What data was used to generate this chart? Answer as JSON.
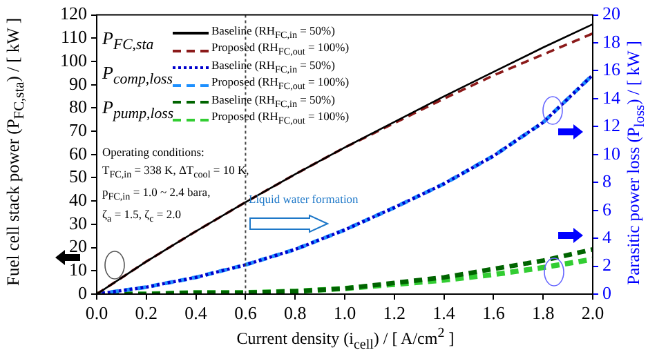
{
  "chart_data": {
    "type": "line",
    "xlabel": "Current density (i$_{cell}$) / [ A/cm$^{2}$ ]",
    "ylabel": "Fuel cell stack power (P$_{FC,sta}$) / [ kW ]",
    "y2label": "Parasitic power loss (P$_{loss}$) / [ kW ]",
    "x": [
      0,
      0.2,
      0.4,
      0.6,
      0.8,
      1.0,
      1.2,
      1.4,
      1.6,
      1.8,
      2.0
    ],
    "series": [
      {
        "name": "Baseline (RH$_{FC,in}$ = 50%)",
        "color": "#000000",
        "line_style": "solid",
        "values": [
          0,
          14,
          27,
          39.5,
          51.5,
          63,
          74,
          85,
          95.5,
          106,
          116
        ]
      },
      {
        "name": "Proposed (RH$_{FC,out}$ = 100%)",
        "color": "#8b1a1a",
        "line_style": "dashed",
        "values": [
          0,
          14,
          27,
          39.5,
          51.5,
          63,
          73.5,
          84,
          94,
          103,
          112
        ]
      },
      {
        "name": "Baseline (RH$_{FC,in}$ = 50%)",
        "color": "#0000cc",
        "line_style": "dotted",
        "axis": "y2",
        "values": [
          0,
          0.5,
          1.2,
          2.1,
          3.2,
          4.6,
          6.2,
          7.9,
          9.9,
          12.3,
          15.7
        ]
      },
      {
        "name": "Proposed (RH$_{FC,out}$ = 100%)",
        "color": "#1e90ff",
        "line_style": "dashed",
        "axis": "y2",
        "values": [
          0,
          0.5,
          1.2,
          2.1,
          3.2,
          4.6,
          6.2,
          7.9,
          9.9,
          12.3,
          15.7
        ]
      },
      {
        "name": "Baseline (RH$_{FC,in}$ = 50%)",
        "color": "#006400",
        "line_style": "dashed",
        "axis": "y2",
        "values": [
          0,
          0,
          0.1,
          0.1,
          0.2,
          0.4,
          0.8,
          1.2,
          1.8,
          2.4,
          3.2
        ]
      },
      {
        "name": "Proposed (RH$_{FC,out}$ = 100%)",
        "color": "#32cd32",
        "line_style": "dashed",
        "axis": "y2",
        "values": [
          0,
          0,
          0.1,
          0.1,
          0.2,
          0.4,
          0.7,
          1.0,
          1.4,
          1.9,
          2.5
        ]
      }
    ],
    "xlim": [
      0,
      2
    ],
    "xticks": [
      {
        "value": 0,
        "label": "0.0"
      },
      0.2,
      0.4,
      0.6,
      0.8,
      {
        "value": 1,
        "label": "1.0"
      },
      1.2,
      1.4,
      1.6,
      1.8,
      {
        "value": 2,
        "label": "2.0"
      }
    ],
    "ylim": [
      0,
      120
    ],
    "yticks": [
      0,
      10,
      20,
      30,
      40,
      50,
      60,
      70,
      80,
      90,
      100,
      110,
      120
    ],
    "y2lim": [
      0,
      20
    ],
    "y2ticks": [
      0,
      2,
      4,
      6,
      8,
      10,
      12,
      14,
      16,
      18,
      20
    ],
    "ref_lines": [
      {
        "axis": "x",
        "value": 0.6,
        "color": "#444444",
        "line_style": "dotted"
      }
    ],
    "annotations": [
      "P$_{FC,sta}$",
      "P$_{comp,loss}$",
      "P$_{pump,loss}$",
      "Operating conditions:\nT$_{FC,in}$ = 338 K, ΔT$_{cool}$ = 10 K,\np$_{FC,in}$ = 1.0 ~ 2.4 bara,\nζ$_{a}$ = 1.5, ζ$_{c}$ = 2.0",
      "Liquid water formation"
    ],
    "legend": "top left",
    "grid": false,
    "marker": "none"
  }
}
